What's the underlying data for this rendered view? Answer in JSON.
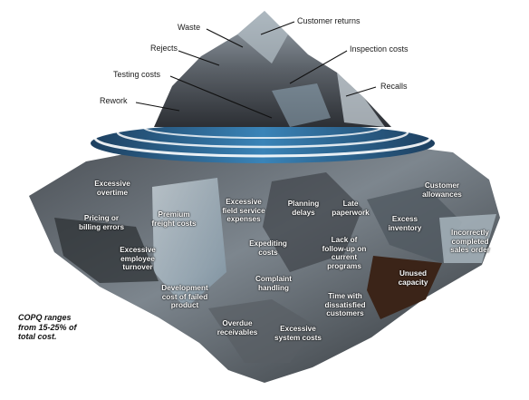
{
  "above_water_labels": [
    {
      "id": "waste",
      "text": "Waste"
    },
    {
      "id": "customer-returns",
      "text": "Customer returns"
    },
    {
      "id": "rejects",
      "text": "Rejects"
    },
    {
      "id": "inspection-costs",
      "text": "Inspection costs"
    },
    {
      "id": "testing-costs",
      "text": "Testing costs"
    },
    {
      "id": "rework",
      "text": "Rework"
    },
    {
      "id": "recalls",
      "text": "Recalls"
    }
  ],
  "below_water_labels": [
    {
      "id": "excessive-overtime",
      "text": "Excessive\novertime"
    },
    {
      "id": "pricing-billing-errors",
      "text": "Pricing or\nbilling errors"
    },
    {
      "id": "premium-freight-costs",
      "text": "Premium\nfreight costs"
    },
    {
      "id": "excessive-field-service",
      "text": "Excessive\nfield service\nexpenses"
    },
    {
      "id": "planning-delays",
      "text": "Planning\ndelays"
    },
    {
      "id": "late-paperwork",
      "text": "Late\npaperwork"
    },
    {
      "id": "customer-allowances",
      "text": "Customer\nallowances"
    },
    {
      "id": "excess-inventory",
      "text": "Excess\ninventory"
    },
    {
      "id": "incorrectly-completed-sales-order",
      "text": "Incorrectly\ncompleted\nsales order"
    },
    {
      "id": "excessive-employee-turnover",
      "text": "Excessive\nemployee\nturnover"
    },
    {
      "id": "expediting-costs",
      "text": "Expediting\ncosts"
    },
    {
      "id": "lack-of-follow-up",
      "text": "Lack of\nfollow-up on\ncurrent\nprograms"
    },
    {
      "id": "development-cost",
      "text": "Development\ncost of failed\nproduct"
    },
    {
      "id": "complaint-handling",
      "text": "Complaint\nhandling"
    },
    {
      "id": "unused-capacity",
      "text": "Unused\ncapacity"
    },
    {
      "id": "time-with-dissatisfied",
      "text": "Time with\ndissatisfied\ncustomers"
    },
    {
      "id": "overdue-receivables",
      "text": "Overdue\nreceivables"
    },
    {
      "id": "excessive-system-costs",
      "text": "Excessive\nsystem costs"
    }
  ],
  "note": "COPQ ranges from 15-25% of total cost.",
  "colors": {
    "rock_dark": "#3a3d42",
    "rock_mid": "#6b7178",
    "ice_light": "#b8c4cc",
    "water_blue": "#2f6f9e",
    "capacity_brown": "#3b2418"
  }
}
